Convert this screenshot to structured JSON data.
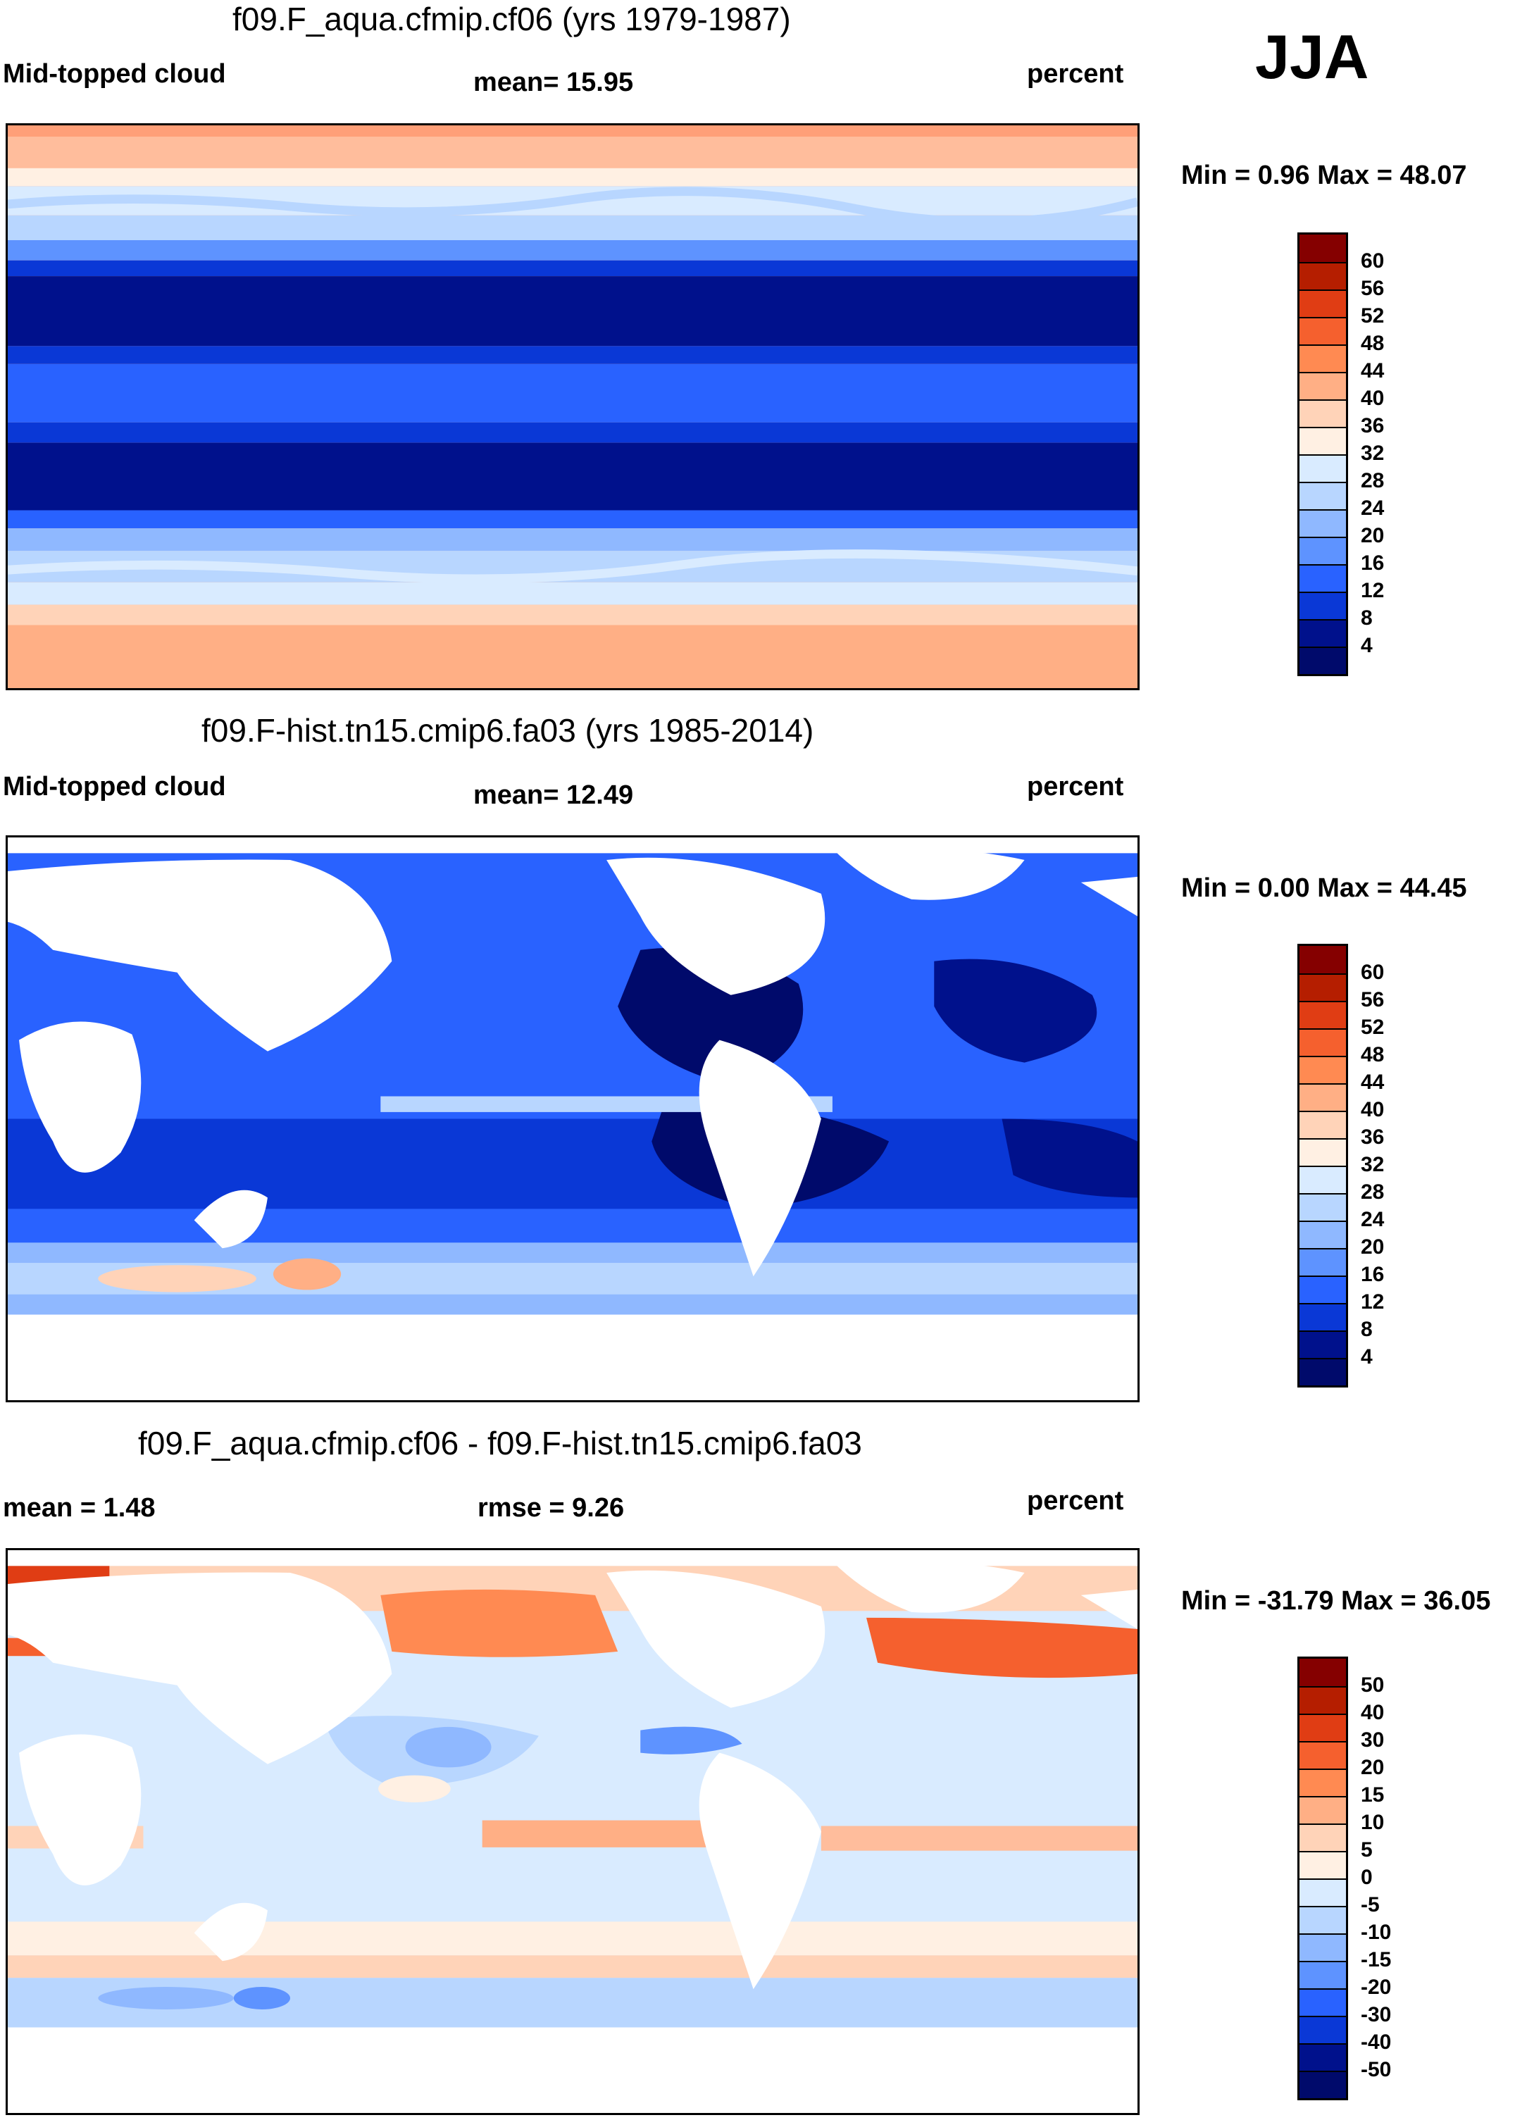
{
  "season": "JJA",
  "panels": [
    {
      "id": "p1",
      "title": "f09.F_aqua.cfmip.cf06 (yrs 1979-1987)",
      "left_label": "Mid-topped cloud",
      "center_label": "mean=  15.95",
      "right_label": "percent",
      "minmax": "Min =   0.96 Max =  48.07",
      "colorbar_ticks": [
        "60",
        "56",
        "52",
        "48",
        "44",
        "40",
        "36",
        "32",
        "28",
        "24",
        "20",
        "16",
        "12",
        "8",
        "4"
      ],
      "colorbar_colors": [
        "#850000",
        "#b51e00",
        "#e03d14",
        "#f5602e",
        "#ff8a52",
        "#ffaf85",
        "#ffd3b8",
        "#fff0e3",
        "#d9ebff",
        "#b8d6ff",
        "#8fb8ff",
        "#5e93ff",
        "#2962ff",
        "#0a38d6",
        "#00118c",
        "#000a6b"
      ]
    },
    {
      "id": "p2",
      "title": "f09.F-hist.tn15.cmip6.fa03 (yrs 1985-2014)",
      "left_label": "Mid-topped cloud",
      "center_label": "mean=  12.49",
      "right_label": "percent",
      "minmax": "Min =   0.00 Max =  44.45",
      "colorbar_ticks": [
        "60",
        "56",
        "52",
        "48",
        "44",
        "40",
        "36",
        "32",
        "28",
        "24",
        "20",
        "16",
        "12",
        "8",
        "4"
      ],
      "colorbar_colors": [
        "#850000",
        "#b51e00",
        "#e03d14",
        "#f5602e",
        "#ff8a52",
        "#ffaf85",
        "#ffd3b8",
        "#fff0e3",
        "#d9ebff",
        "#b8d6ff",
        "#8fb8ff",
        "#5e93ff",
        "#2962ff",
        "#0a38d6",
        "#00118c",
        "#000a6b"
      ]
    },
    {
      "id": "p3",
      "title": "f09.F_aqua.cfmip.cf06 - f09.F-hist.tn15.cmip6.fa03",
      "left_label": "mean =    1.48",
      "center_label": "rmse =    9.26",
      "right_label": "percent",
      "minmax": "Min = -31.79 Max =  36.05",
      "colorbar_ticks": [
        "50",
        "40",
        "30",
        "20",
        "15",
        "10",
        "5",
        "0",
        "-5",
        "-10",
        "-15",
        "-20",
        "-30",
        "-40",
        "-50"
      ],
      "colorbar_colors": [
        "#850000",
        "#b51e00",
        "#e03d14",
        "#f5602e",
        "#ff8a52",
        "#ffaf85",
        "#ffd3b8",
        "#fff0e3",
        "#d9ebff",
        "#b8d6ff",
        "#8fb8ff",
        "#5e93ff",
        "#2962ff",
        "#0a38d6",
        "#00118c",
        "#000a6b"
      ]
    }
  ]
}
